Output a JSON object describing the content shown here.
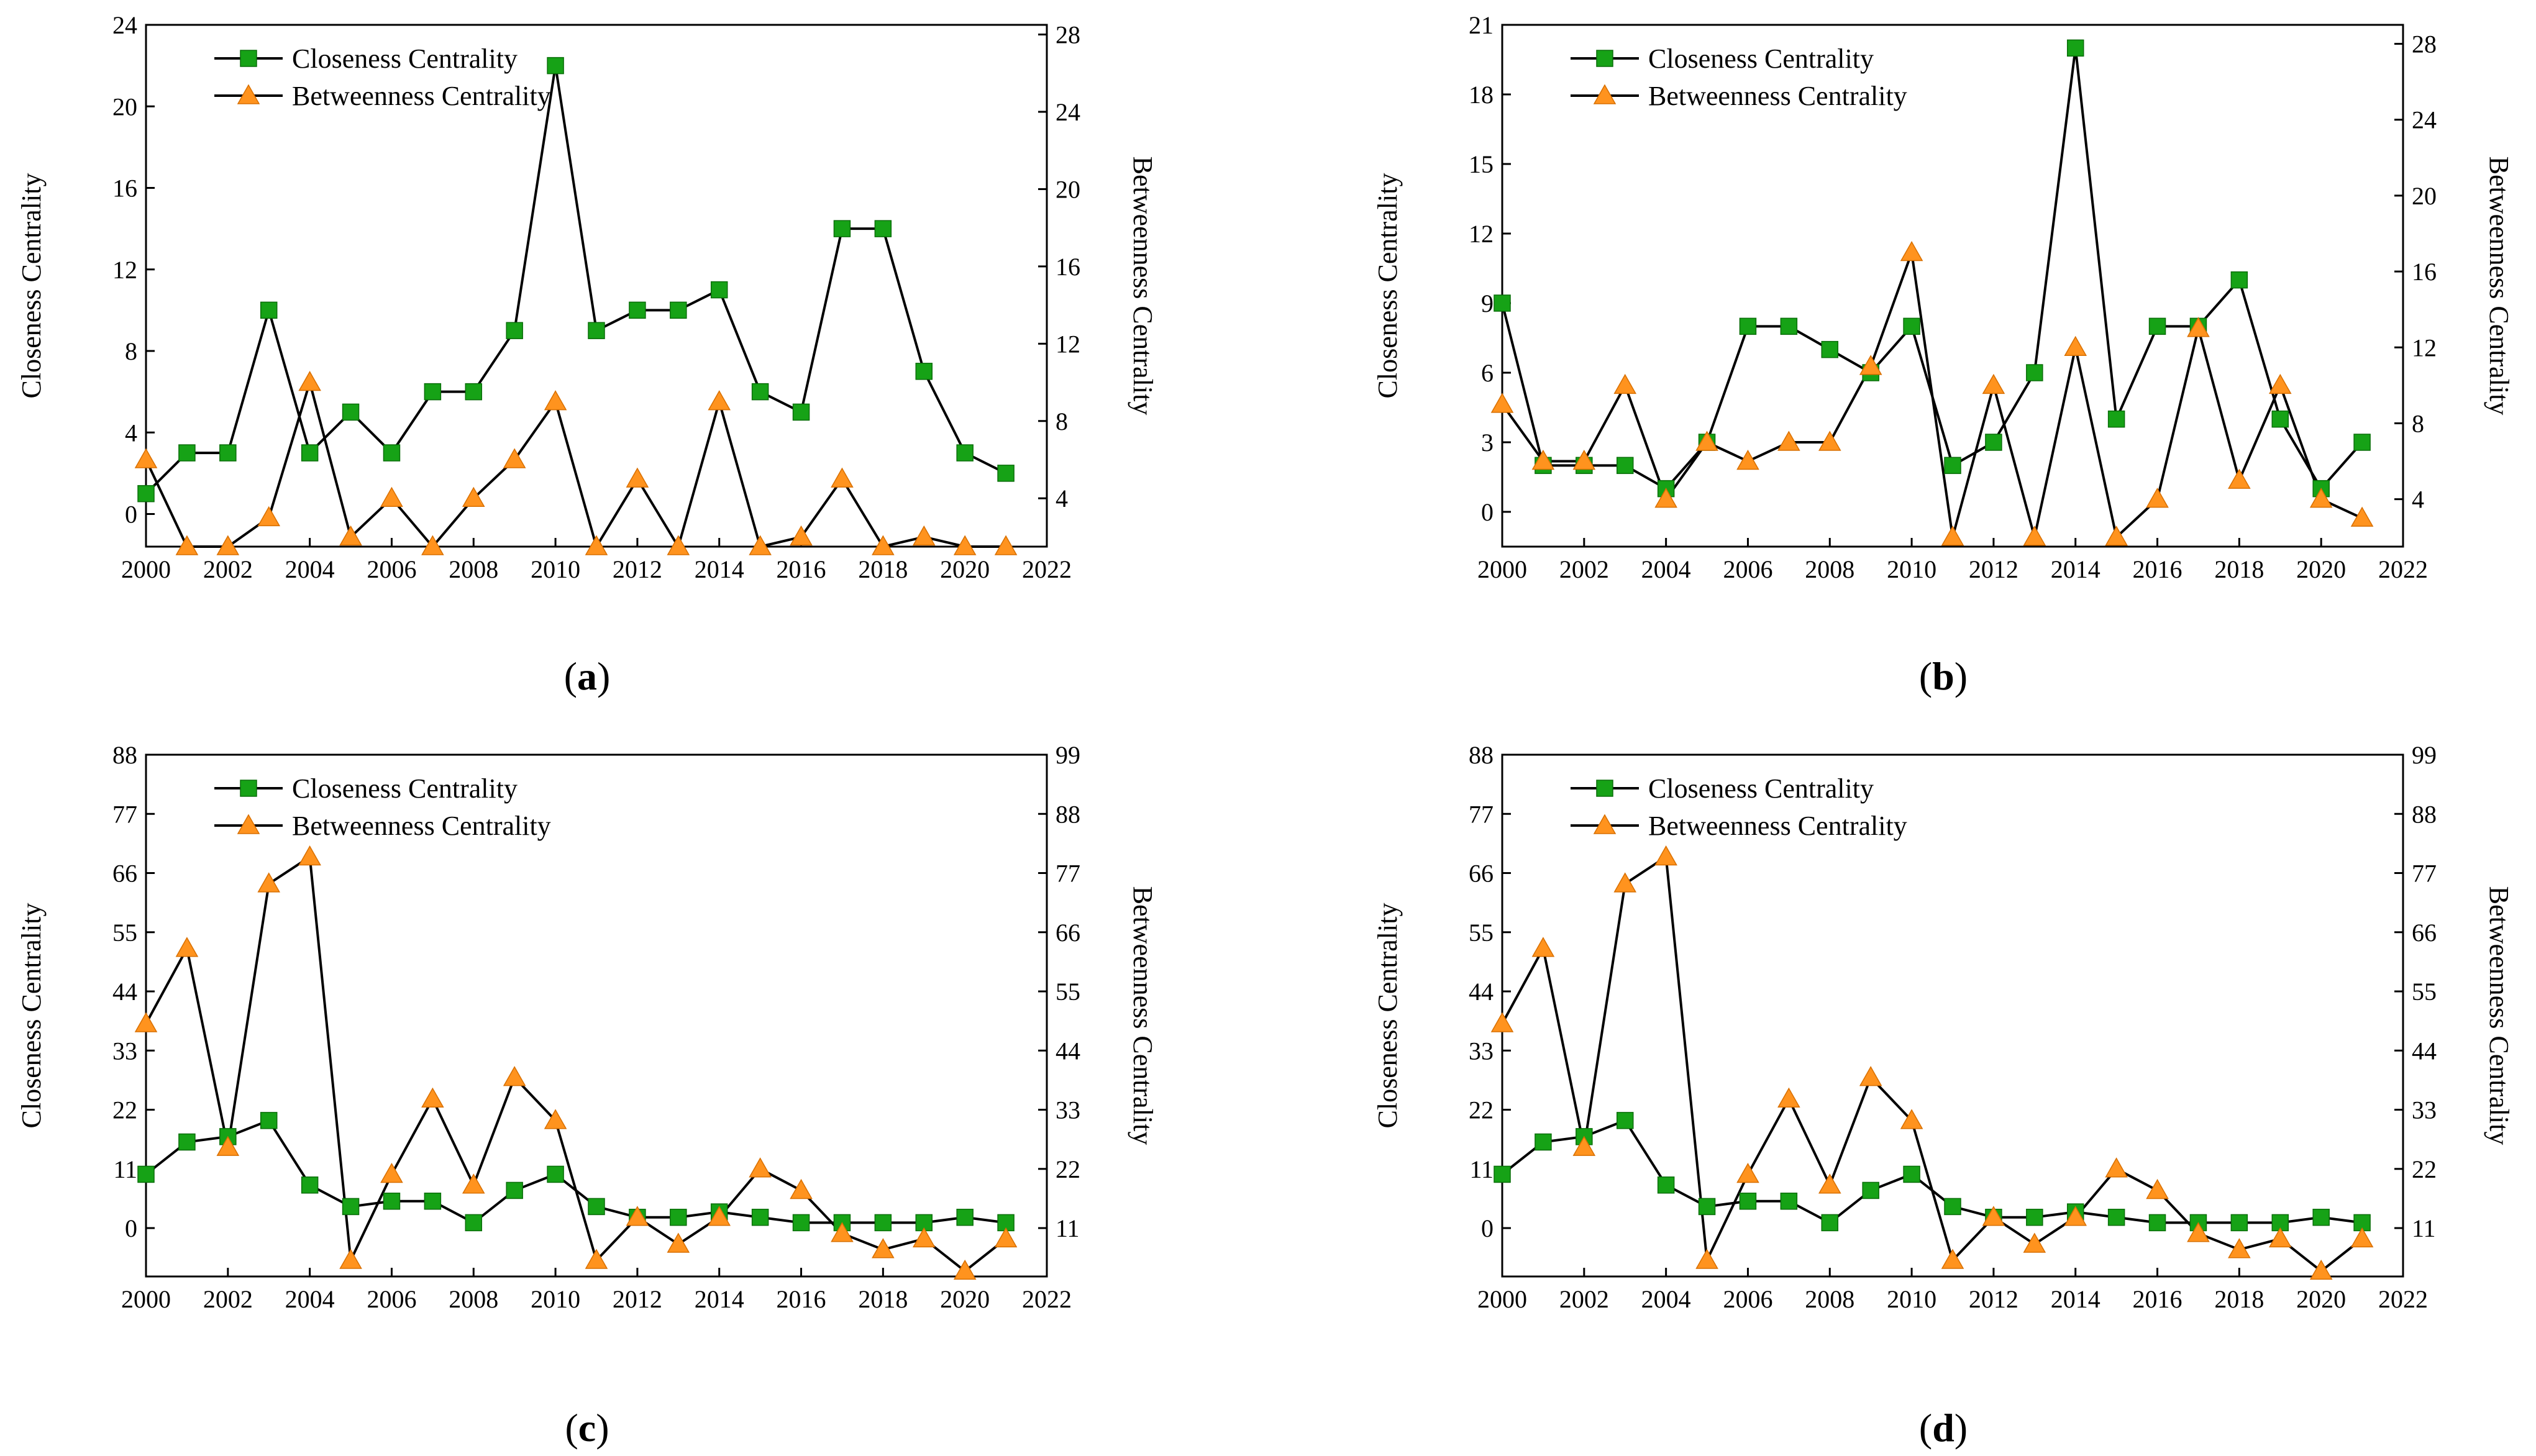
{
  "figure": {
    "colors": {
      "closeness": "#16a216",
      "betweenness": "#ff931e",
      "line": "#000000"
    }
  },
  "chart_data": [
    {
      "panel": "a",
      "caption": "a",
      "type": "line",
      "title": "",
      "xlabel": "",
      "ylabel": "Closeness Centrality",
      "y2label": "Betweenness Centrality",
      "legend_position": "top-left",
      "xlim": [
        2000,
        2022
      ],
      "xticks": [
        2000,
        2002,
        2004,
        2006,
        2008,
        2010,
        2012,
        2014,
        2016,
        2018,
        2020,
        2022
      ],
      "ylim": [
        -1.6,
        24
      ],
      "yticks": [
        0,
        4,
        8,
        12,
        16,
        20,
        24
      ],
      "y2lim": [
        1.5,
        28.5
      ],
      "y2ticks": [
        4,
        8,
        12,
        16,
        20,
        24,
        28
      ],
      "x": [
        2000,
        2001,
        2002,
        2003,
        2004,
        2005,
        2006,
        2007,
        2008,
        2009,
        2010,
        2011,
        2012,
        2013,
        2014,
        2015,
        2016,
        2017,
        2018,
        2019,
        2020,
        2021
      ],
      "series": [
        {
          "name": "Closeness Centrality",
          "axis": "left",
          "marker": "square",
          "values": [
            1,
            3,
            3,
            10,
            3,
            5,
            3,
            6,
            6,
            9,
            22,
            9,
            10,
            10,
            11,
            6,
            5,
            14,
            14,
            7,
            3,
            2
          ]
        },
        {
          "name": "Betweenness Centrality",
          "axis": "right",
          "marker": "triangle",
          "values": [
            6,
            1.5,
            1.5,
            3,
            10,
            2,
            4,
            1.5,
            4,
            6,
            9,
            1.5,
            5,
            1.5,
            9,
            1.5,
            2,
            5,
            1.5,
            2,
            1.5,
            1.5
          ]
        }
      ]
    },
    {
      "panel": "b",
      "caption": "b",
      "type": "line",
      "title": "",
      "xlabel": "",
      "ylabel": "Closeness Centrality",
      "y2label": "Betweenness Centrality",
      "legend_position": "top-left",
      "xlim": [
        2000,
        2022
      ],
      "xticks": [
        2000,
        2002,
        2004,
        2006,
        2008,
        2010,
        2012,
        2014,
        2016,
        2018,
        2020,
        2022
      ],
      "ylim": [
        -1.5,
        21
      ],
      "yticks": [
        0,
        3,
        6,
        9,
        12,
        15,
        18,
        21
      ],
      "y2lim": [
        1.5,
        29
      ],
      "y2ticks": [
        4,
        8,
        12,
        16,
        20,
        24,
        28
      ],
      "x": [
        2000,
        2001,
        2002,
        2003,
        2004,
        2005,
        2006,
        2007,
        2008,
        2009,
        2010,
        2011,
        2012,
        2013,
        2014,
        2015,
        2016,
        2017,
        2018,
        2019,
        2020,
        2021
      ],
      "series": [
        {
          "name": "Closeness Centrality",
          "axis": "left",
          "marker": "square",
          "values": [
            9,
            2,
            2,
            2,
            1,
            3,
            8,
            8,
            7,
            6,
            8,
            2,
            3,
            6,
            20,
            4,
            8,
            8,
            10,
            4,
            1,
            3
          ]
        },
        {
          "name": "Betweenness Centrality",
          "axis": "right",
          "marker": "triangle",
          "values": [
            9,
            6,
            6,
            10,
            4,
            7,
            6,
            7,
            7,
            11,
            17,
            2,
            10,
            2,
            12,
            2,
            4,
            13,
            5,
            10,
            4,
            3
          ]
        }
      ]
    },
    {
      "panel": "c",
      "caption": "c",
      "type": "line",
      "title": "",
      "xlabel": "",
      "ylabel": "Closeness Centrality",
      "y2label": "Betweenness Centrality",
      "legend_position": "top-left",
      "xlim": [
        2000,
        2022
      ],
      "xticks": [
        2000,
        2002,
        2004,
        2006,
        2008,
        2010,
        2012,
        2014,
        2016,
        2018,
        2020,
        2022
      ],
      "ylim": [
        -9,
        88
      ],
      "yticks": [
        0,
        11,
        22,
        33,
        44,
        55,
        66,
        77,
        88
      ],
      "y2lim": [
        2,
        99
      ],
      "y2ticks": [
        11,
        22,
        33,
        44,
        55,
        66,
        77,
        88,
        99
      ],
      "x": [
        2000,
        2001,
        2002,
        2003,
        2004,
        2005,
        2006,
        2007,
        2008,
        2009,
        2010,
        2011,
        2012,
        2013,
        2014,
        2015,
        2016,
        2017,
        2018,
        2019,
        2020,
        2021
      ],
      "series": [
        {
          "name": "Closeness Centrality",
          "axis": "left",
          "marker": "square",
          "values": [
            10,
            16,
            17,
            20,
            8,
            4,
            5,
            5,
            1,
            7,
            10,
            4,
            2,
            2,
            3,
            2,
            1,
            1,
            1,
            1,
            2,
            1
          ]
        },
        {
          "name": "Betweenness Centrality",
          "axis": "right",
          "marker": "triangle",
          "values": [
            49,
            63,
            26,
            75,
            80,
            5,
            21,
            35,
            19,
            39,
            31,
            5,
            13,
            8,
            13,
            22,
            18,
            10,
            7,
            9,
            3,
            9
          ]
        }
      ]
    },
    {
      "panel": "d",
      "caption": "d",
      "type": "line",
      "title": "",
      "xlabel": "",
      "ylabel": "Closeness Centrality",
      "y2label": "Betweenness Centrality",
      "legend_position": "top-left",
      "xlim": [
        2000,
        2022
      ],
      "xticks": [
        2000,
        2002,
        2004,
        2006,
        2008,
        2010,
        2012,
        2014,
        2016,
        2018,
        2020,
        2022
      ],
      "ylim": [
        -9,
        88
      ],
      "yticks": [
        0,
        11,
        22,
        33,
        44,
        55,
        66,
        77,
        88
      ],
      "y2lim": [
        2,
        99
      ],
      "y2ticks": [
        11,
        22,
        33,
        44,
        55,
        66,
        77,
        88,
        99
      ],
      "x": [
        2000,
        2001,
        2002,
        2003,
        2004,
        2005,
        2006,
        2007,
        2008,
        2009,
        2010,
        2011,
        2012,
        2013,
        2014,
        2015,
        2016,
        2017,
        2018,
        2019,
        2020,
        2021
      ],
      "series": [
        {
          "name": "Closeness Centrality",
          "axis": "left",
          "marker": "square",
          "values": [
            10,
            16,
            17,
            20,
            8,
            4,
            5,
            5,
            1,
            7,
            10,
            4,
            2,
            2,
            3,
            2,
            1,
            1,
            1,
            1,
            2,
            1
          ]
        },
        {
          "name": "Betweenness Centrality",
          "axis": "right",
          "marker": "triangle",
          "values": [
            49,
            63,
            26,
            75,
            80,
            5,
            21,
            35,
            19,
            39,
            31,
            5,
            13,
            8,
            13,
            22,
            18,
            10,
            7,
            9,
            3,
            9
          ]
        }
      ]
    }
  ]
}
